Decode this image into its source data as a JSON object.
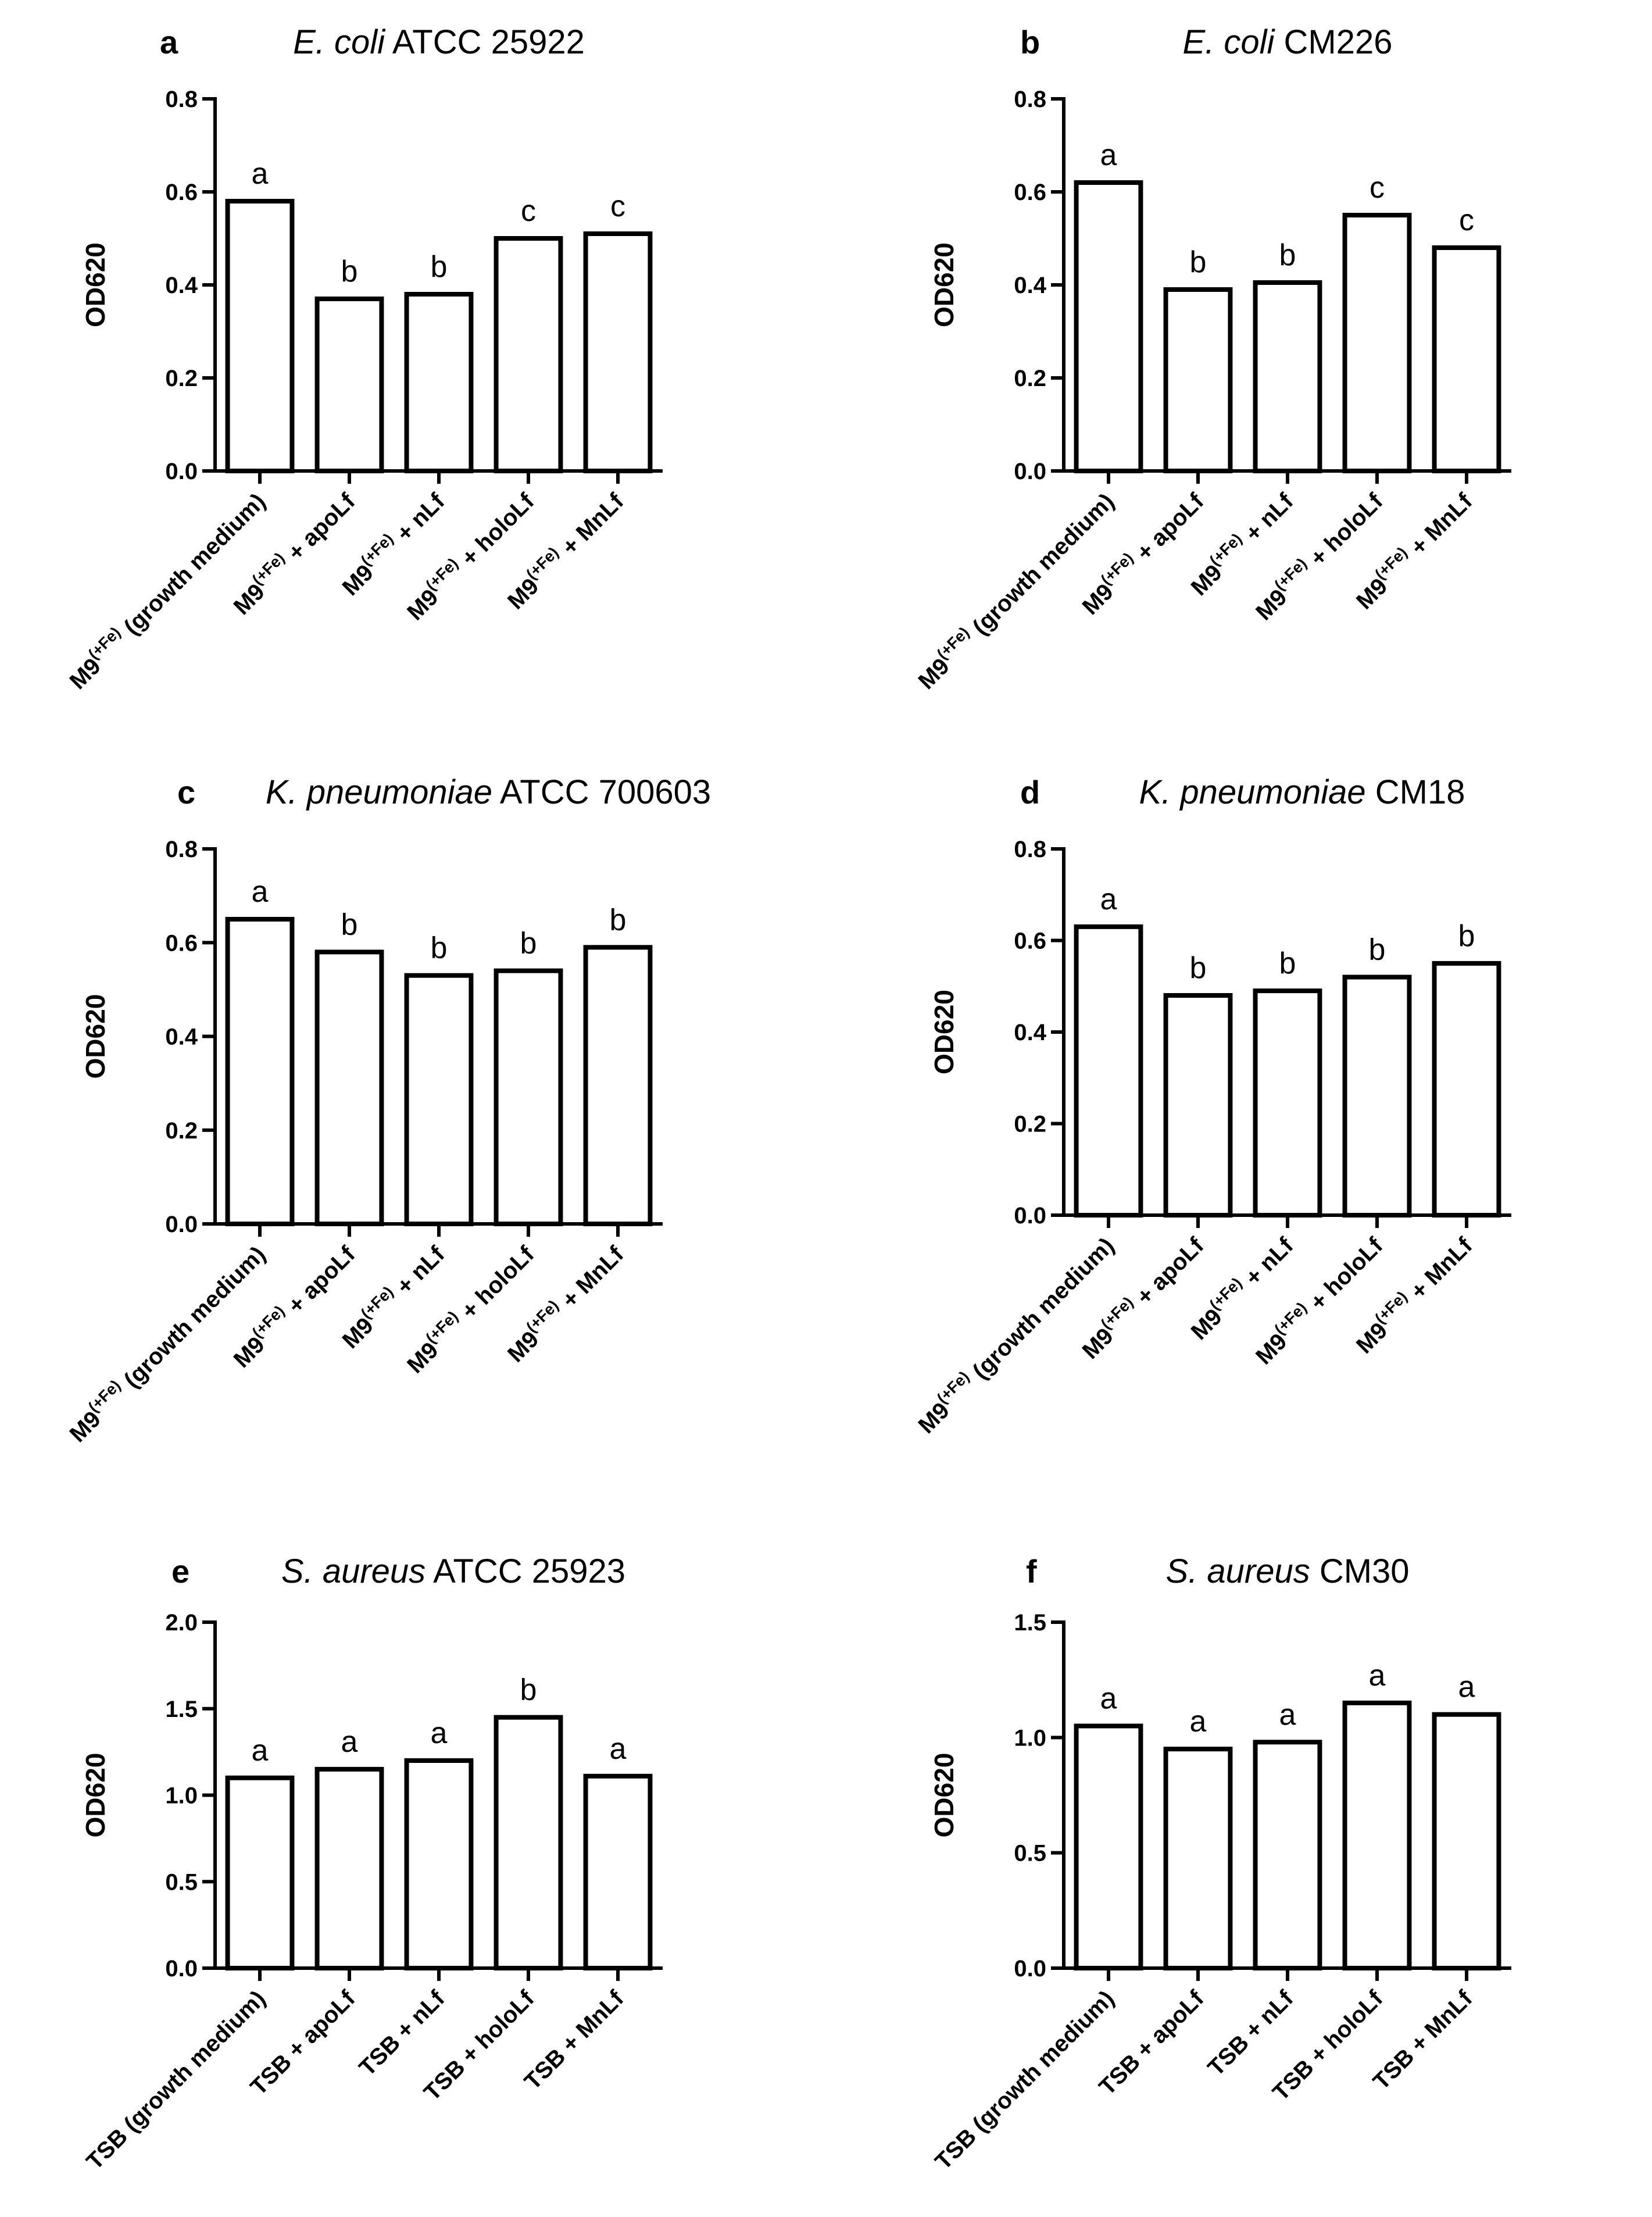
{
  "chart_data": [
    {
      "type": "bar",
      "panel": "a",
      "title": {
        "italic": "E. coli",
        "rest": " ATCC 25922"
      },
      "ylabel": "OD620",
      "ylim": [
        0,
        0.8
      ],
      "yticks": [
        "0.0",
        "0.2",
        "0.4",
        "0.6",
        "0.8"
      ],
      "categories": [
        {
          "base": "M9",
          "sup": "(+Fe)",
          "suffix": "  (growth medium)"
        },
        {
          "base": "M9",
          "sup": "(+Fe)",
          "suffix": " + apoLf"
        },
        {
          "base": "M9",
          "sup": "(+Fe)",
          "suffix": " + nLf"
        },
        {
          "base": "M9",
          "sup": "(+Fe)",
          "suffix": " + holoLf"
        },
        {
          "base": "M9",
          "sup": "(+Fe)",
          "suffix": " + MnLf"
        }
      ],
      "values": [
        0.58,
        0.37,
        0.38,
        0.5,
        0.51
      ],
      "letters": [
        "a",
        "b",
        "b",
        "c",
        "c"
      ]
    },
    {
      "type": "bar",
      "panel": "b",
      "title": {
        "italic": "E. coli",
        "rest": " CM226"
      },
      "ylabel": "OD620",
      "ylim": [
        0,
        0.8
      ],
      "yticks": [
        "0.0",
        "0.2",
        "0.4",
        "0.6",
        "0.8"
      ],
      "categories": [
        {
          "base": "M9",
          "sup": "(+Fe)",
          "suffix": "  (growth medium)"
        },
        {
          "base": "M9",
          "sup": "(+Fe)",
          "suffix": " + apoLf"
        },
        {
          "base": "M9",
          "sup": "(+Fe)",
          "suffix": " + nLf"
        },
        {
          "base": "M9",
          "sup": "(+Fe)",
          "suffix": " + holoLf"
        },
        {
          "base": "M9",
          "sup": "(+Fe)",
          "suffix": " + MnLf"
        }
      ],
      "values": [
        0.62,
        0.39,
        0.405,
        0.55,
        0.48
      ],
      "letters": [
        "a",
        "b",
        "b",
        "c",
        "c"
      ]
    },
    {
      "type": "bar",
      "panel": "c",
      "title": {
        "italic": "K. pneumoniae",
        "rest": " ATCC 700603"
      },
      "ylabel": "OD620",
      "ylim": [
        0,
        0.8
      ],
      "yticks": [
        "0.0",
        "0.2",
        "0.4",
        "0.6",
        "0.8"
      ],
      "categories": [
        {
          "base": "M9",
          "sup": "(+Fe)",
          "suffix": "  (growth medium)"
        },
        {
          "base": "M9",
          "sup": "(+Fe)",
          "suffix": " + apoLf"
        },
        {
          "base": "M9",
          "sup": "(+Fe)",
          "suffix": " + nLf"
        },
        {
          "base": "M9",
          "sup": "(+Fe)",
          "suffix": " + holoLf"
        },
        {
          "base": "M9",
          "sup": "(+Fe)",
          "suffix": " + MnLf"
        }
      ],
      "values": [
        0.65,
        0.58,
        0.53,
        0.54,
        0.59
      ],
      "letters": [
        "a",
        "b",
        "b",
        "b",
        "b"
      ]
    },
    {
      "type": "bar",
      "panel": "d",
      "title": {
        "italic": "K. pneumoniae",
        "rest": " CM18"
      },
      "ylabel": "OD620",
      "ylim": [
        0,
        0.8
      ],
      "yticks": [
        "0.0",
        "0.2",
        "0.4",
        "0.6",
        "0.8"
      ],
      "categories": [
        {
          "base": "M9",
          "sup": "(+Fe)",
          "suffix": "  (growth medium)"
        },
        {
          "base": "M9",
          "sup": "(+Fe)",
          "suffix": " + apoLf"
        },
        {
          "base": "M9",
          "sup": "(+Fe)",
          "suffix": " + nLf"
        },
        {
          "base": "M9",
          "sup": "(+Fe)",
          "suffix": " + holoLf"
        },
        {
          "base": "M9",
          "sup": "(+Fe)",
          "suffix": " + MnLf"
        }
      ],
      "values": [
        0.63,
        0.48,
        0.49,
        0.52,
        0.55
      ],
      "letters": [
        "a",
        "b",
        "b",
        "b",
        "b"
      ]
    },
    {
      "type": "bar",
      "panel": "e",
      "title": {
        "italic": "S. aureus",
        "rest": "  ATCC 25923"
      },
      "ylabel": "OD620",
      "ylim": [
        0,
        2.0
      ],
      "yticks": [
        "0.0",
        "0.5",
        "1.0",
        "1.5",
        "2.0"
      ],
      "categories": [
        {
          "base": "TSB (growth medium)",
          "sup": "",
          "suffix": ""
        },
        {
          "base": "TSB + apoLf",
          "sup": "",
          "suffix": ""
        },
        {
          "base": "TSB + nLf",
          "sup": "",
          "suffix": ""
        },
        {
          "base": "TSB + holoLf",
          "sup": "",
          "suffix": ""
        },
        {
          "base": "TSB + MnLf",
          "sup": "",
          "suffix": ""
        }
      ],
      "values": [
        1.1,
        1.15,
        1.2,
        1.45,
        1.11
      ],
      "letters": [
        "a",
        "a",
        "a",
        "b",
        "a"
      ]
    },
    {
      "type": "bar",
      "panel": "f",
      "title": {
        "italic": "S. aureus",
        "rest": "  CM30"
      },
      "ylabel": "OD620",
      "ylim": [
        0,
        1.5
      ],
      "yticks": [
        "0.0",
        "0.5",
        "1.0",
        "1.5"
      ],
      "categories": [
        {
          "base": "TSB (growth medium)",
          "sup": "",
          "suffix": ""
        },
        {
          "base": "TSB + apoLf",
          "sup": "",
          "suffix": ""
        },
        {
          "base": "TSB + nLf",
          "sup": "",
          "suffix": ""
        },
        {
          "base": "TSB + holoLf",
          "sup": "",
          "suffix": ""
        },
        {
          "base": "TSB + MnLf",
          "sup": "",
          "suffix": ""
        }
      ],
      "values": [
        1.05,
        0.95,
        0.98,
        1.15,
        1.1
      ],
      "letters": [
        "a",
        "a",
        "a",
        "a",
        "a"
      ]
    }
  ]
}
